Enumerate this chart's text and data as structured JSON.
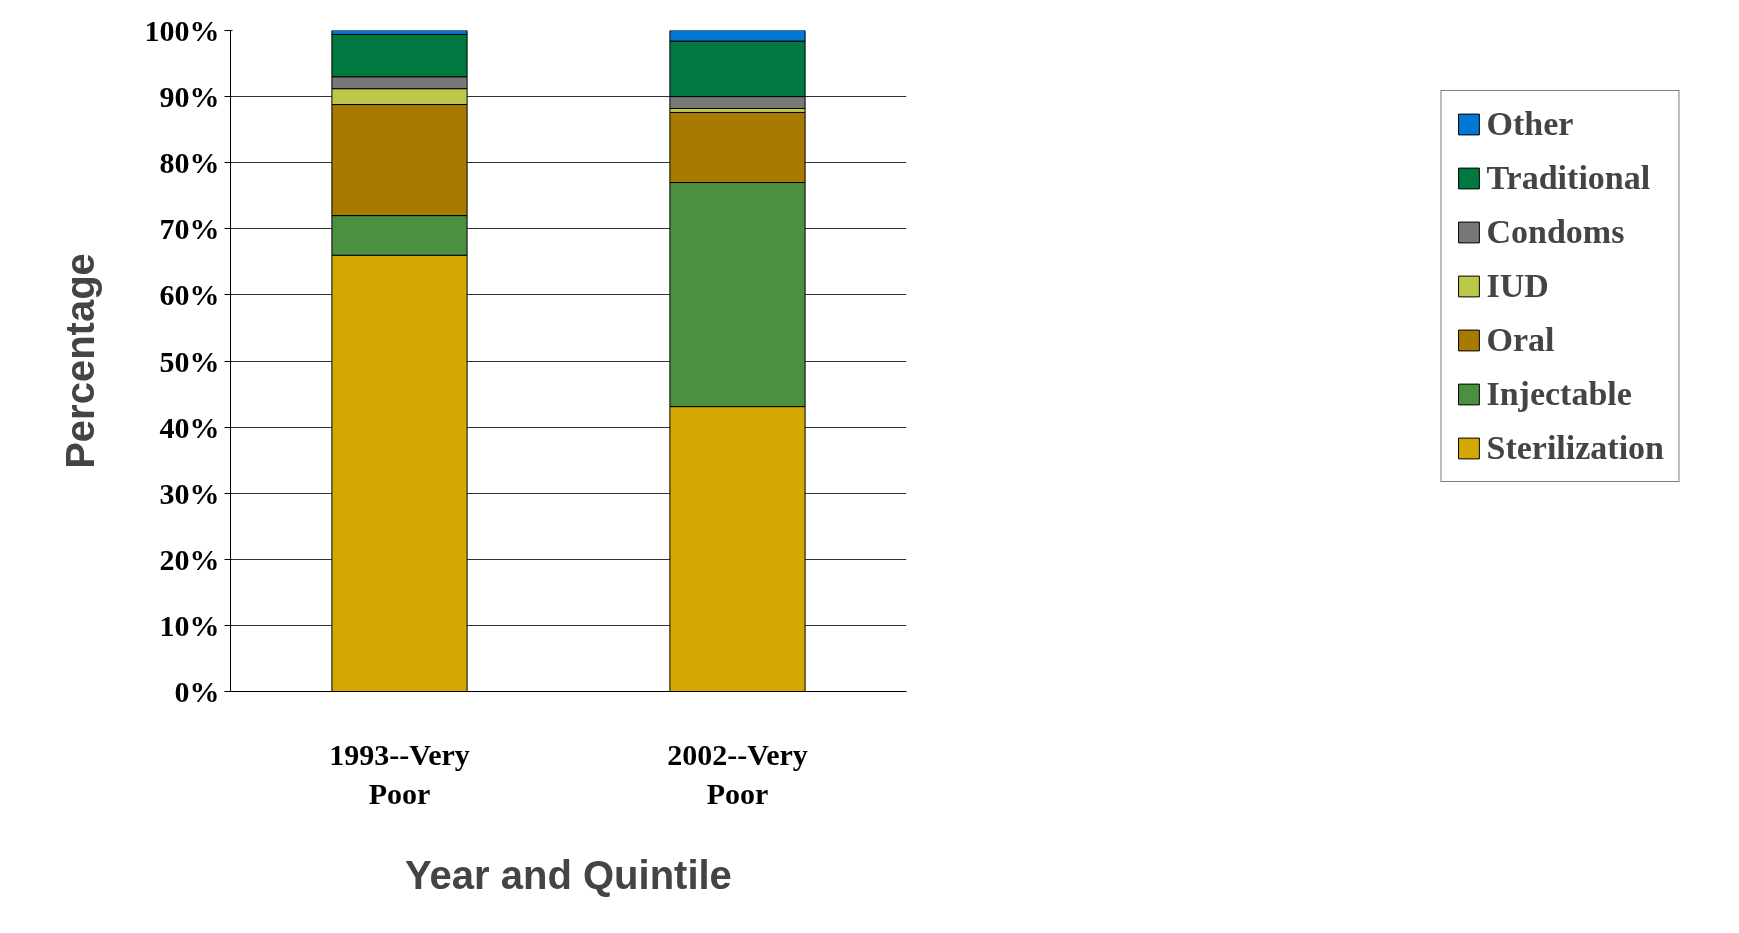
{
  "chart_data": {
    "type": "bar",
    "stacked": true,
    "xlabel": "Year and Quintile",
    "ylabel": "Percentage",
    "categories": [
      "1993--Very Poor",
      "2002--Very Poor"
    ],
    "series": [
      {
        "name": "Sterilization",
        "color": "#d4a800",
        "values": [
          66.0,
          43.1
        ]
      },
      {
        "name": "Injectable",
        "color": "#4a9040",
        "values": [
          6.0,
          33.9
        ]
      },
      {
        "name": "Oral",
        "color": "#a87a00",
        "values": [
          16.8,
          10.6
        ]
      },
      {
        "name": "IUD",
        "color": "#bcc84a",
        "values": [
          2.4,
          0.6
        ]
      },
      {
        "name": "Condoms",
        "color": "#787878",
        "values": [
          1.8,
          1.8
        ]
      },
      {
        "name": "Traditional",
        "color": "#007840",
        "values": [
          6.4,
          8.4
        ]
      },
      {
        "name": "Other",
        "color": "#0078d4",
        "values": [
          0.6,
          1.6
        ]
      }
    ],
    "ylim": [
      0,
      100
    ],
    "yticks": [
      {
        "value": 0,
        "label": "0%"
      },
      {
        "value": 10,
        "label": "10%"
      },
      {
        "value": 20,
        "label": "20%"
      },
      {
        "value": 30,
        "label": "30%"
      },
      {
        "value": 40,
        "label": "40%"
      },
      {
        "value": 50,
        "label": "50%"
      },
      {
        "value": 60,
        "label": "60%"
      },
      {
        "value": 70,
        "label": "70%"
      },
      {
        "value": 80,
        "label": "80%"
      },
      {
        "value": 90,
        "label": "90%"
      },
      {
        "value": 100,
        "label": "100%"
      }
    ],
    "grid": "y",
    "legend": "right"
  }
}
